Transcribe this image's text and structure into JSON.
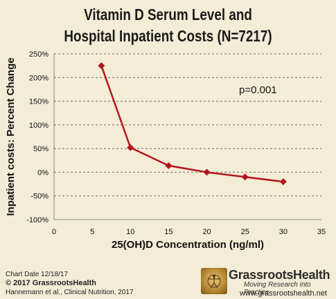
{
  "chart_data": {
    "type": "line",
    "title": "Vitamin D Serum Level and",
    "subtitle": "Hospital Inpatient Costs (N=7217)",
    "xlabel": "25(OH)D Concentration (ng/ml)",
    "ylabel": "Inpatient costs: Percent Change",
    "x": [
      6.2,
      10,
      15,
      20,
      25,
      30
    ],
    "values": [
      225,
      52,
      14,
      0,
      -10,
      -20
    ],
    "xlim": [
      0,
      35
    ],
    "ylim": [
      -100,
      250
    ],
    "xticks": [
      "0",
      "5",
      "10",
      "15",
      "20",
      "25",
      "30",
      "35"
    ],
    "yticks": [
      "250%",
      "200%",
      "150%",
      "100%",
      "50%",
      "0%",
      "-50%",
      "-100%"
    ],
    "annotation": "p=0.001",
    "grid": "horizontal dashed",
    "line_color": "#b3141b"
  },
  "footer": {
    "chart_date": "Chart Date 12/18/17",
    "copyright": "© 2017 GrassrootsHealth",
    "citation": "Hannemann et al., Clinical Nutrition, 2017"
  },
  "brand": {
    "name": "GrassrootsHealth",
    "tagline": "Moving Research into Practice",
    "url": "www.grassrootshealth.net",
    "logo_icon": "vitruvian-man-icon"
  }
}
